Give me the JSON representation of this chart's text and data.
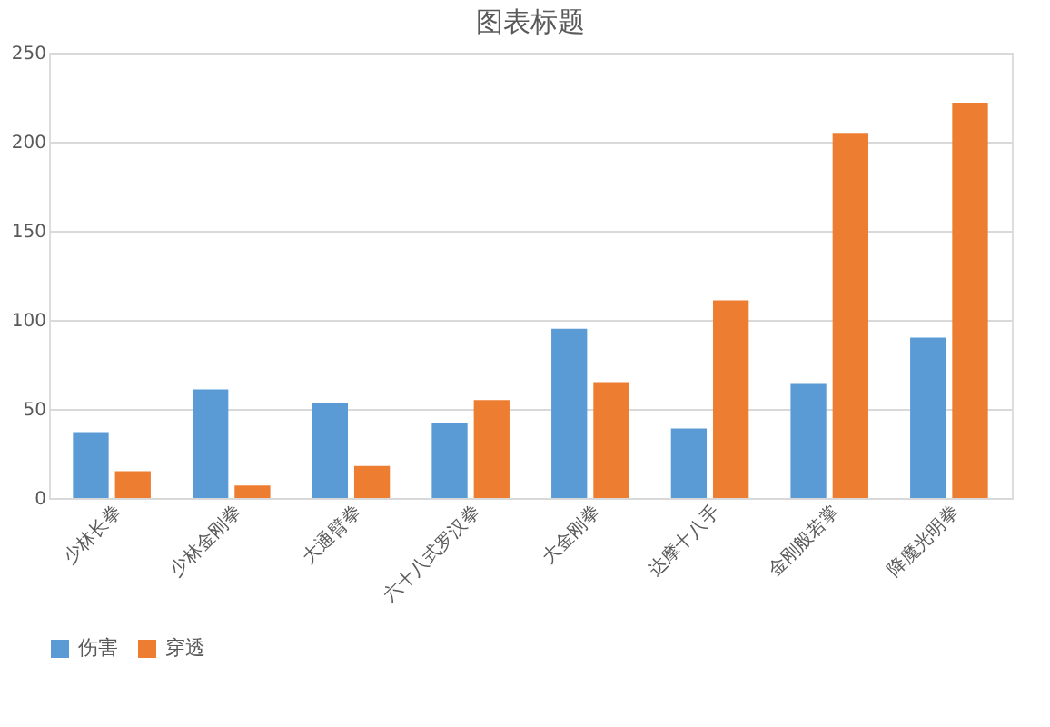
{
  "chart_data": {
    "type": "bar",
    "title": "图表标题",
    "categories": [
      "少林长拳",
      "少林金刚拳",
      "大通臂拳",
      "六十八式罗汉拳",
      "大金刚拳",
      "达摩十八手",
      "金刚般若掌",
      "降魔光明拳"
    ],
    "series": [
      {
        "name": "伤害",
        "color": "#5b9bd5",
        "values": [
          37,
          61,
          53,
          42,
          95,
          39,
          64,
          90
        ]
      },
      {
        "name": "穿透",
        "color": "#ed7d31",
        "values": [
          15,
          7,
          18,
          55,
          65,
          111,
          205,
          222
        ]
      }
    ],
    "ylim": [
      0,
      250
    ],
    "yticks": [
      0,
      50,
      100,
      150,
      200,
      250
    ],
    "grid": "y",
    "legend": "bottom"
  }
}
